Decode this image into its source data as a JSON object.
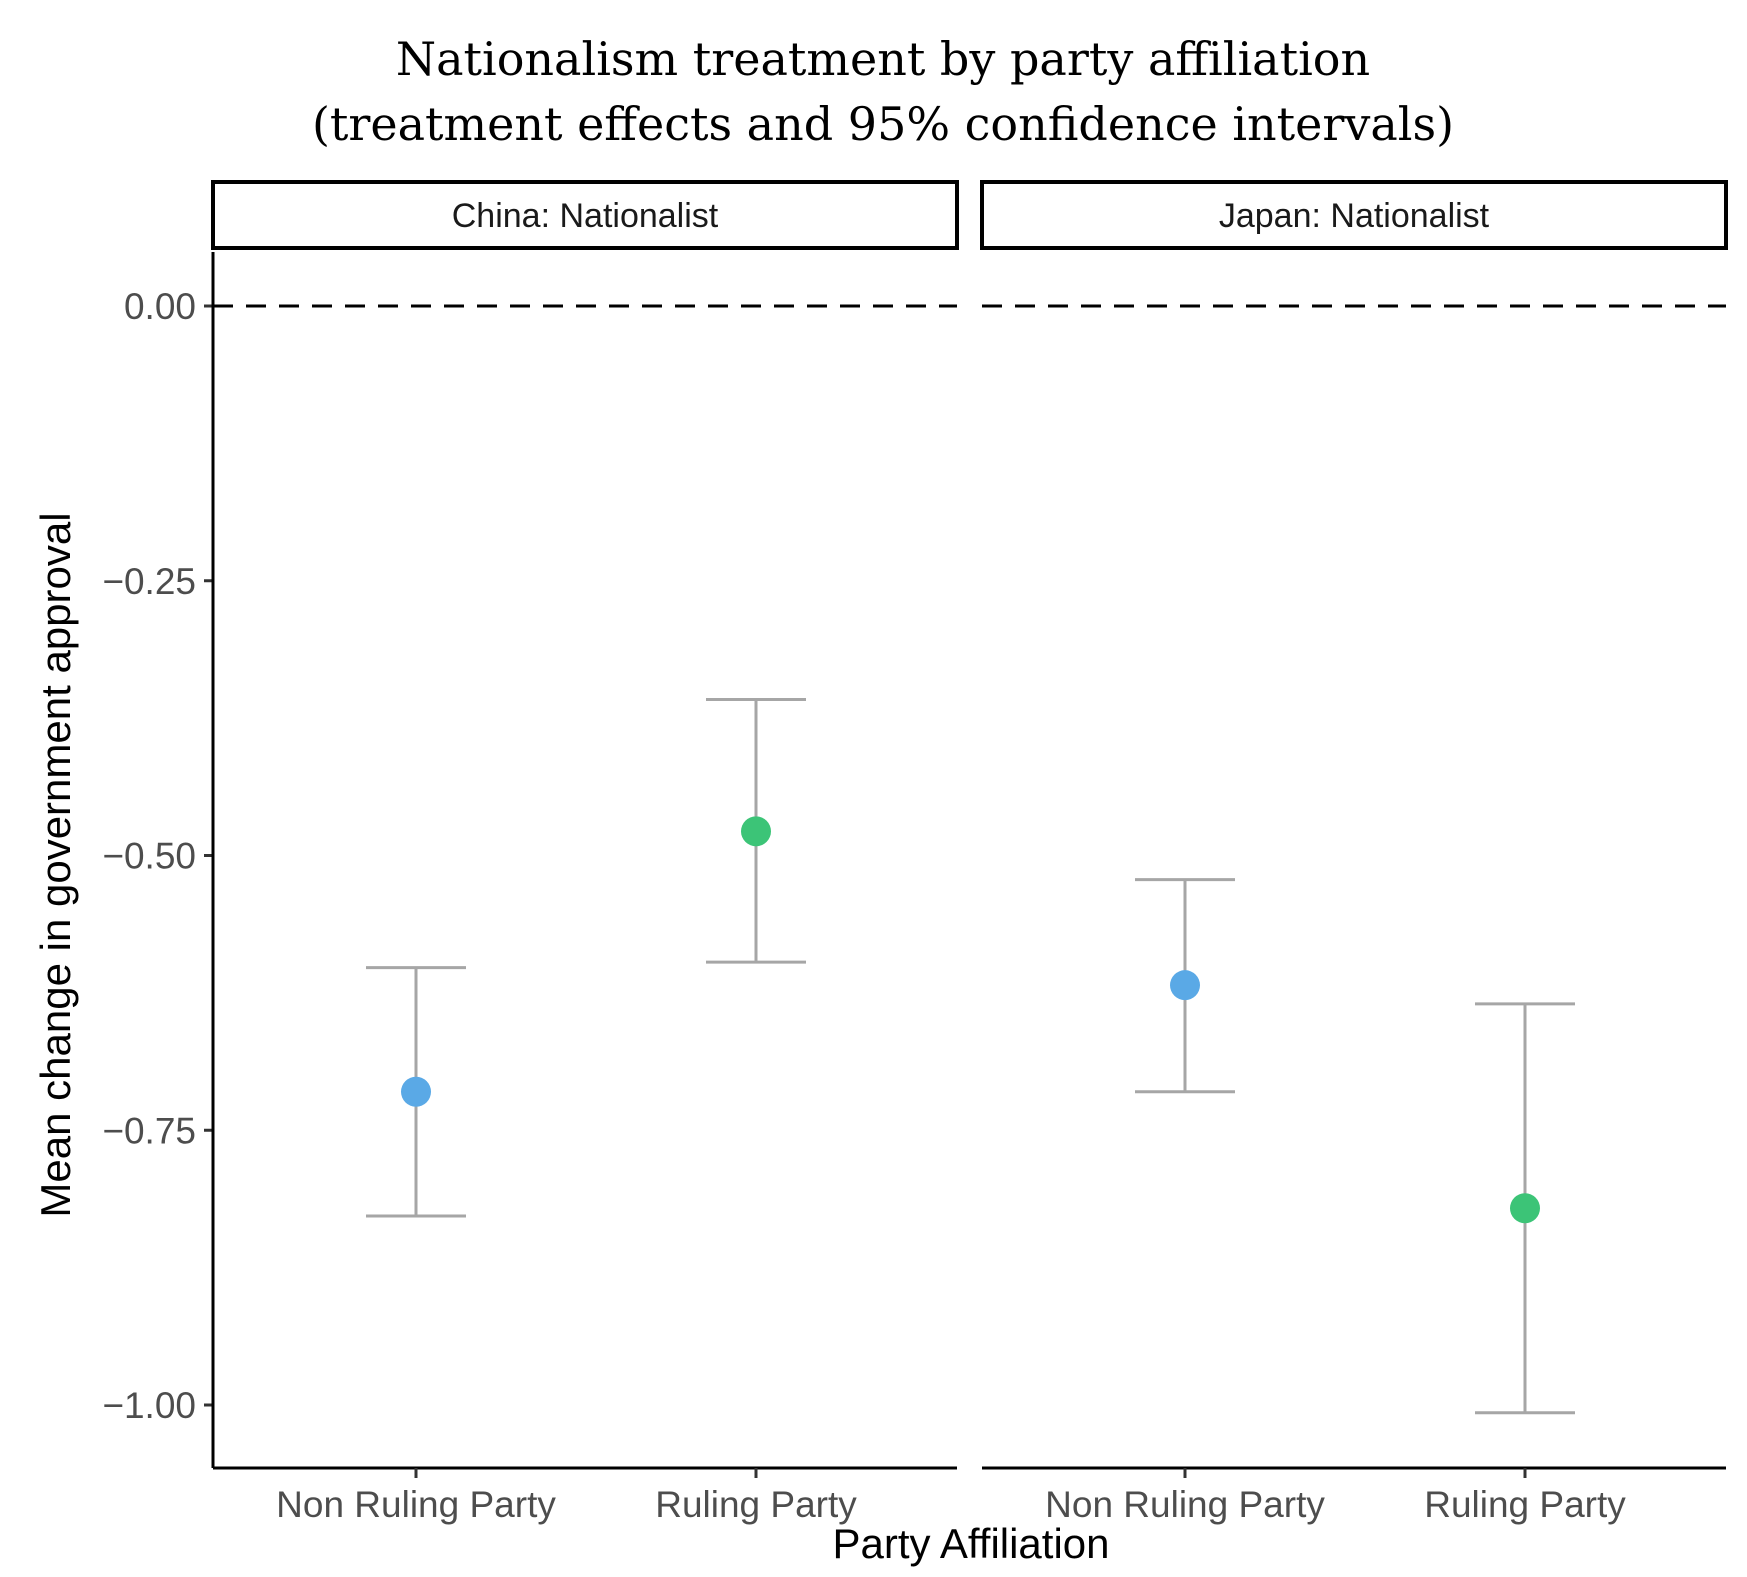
{
  "chart_data": {
    "type": "scatter",
    "title": "Nationalism treatment by party affiliation",
    "subtitle": "(treatment effects and 95% confidence intervals)",
    "xlabel": "Party Affiliation",
    "ylabel": "Mean change in government approval",
    "ylim": [
      -1.06,
      0.05
    ],
    "yticks": [
      0.0,
      -0.25,
      -0.5,
      -0.75,
      -1.0
    ],
    "ytick_labels": [
      "0.00",
      "−0.25",
      "−0.50",
      "−0.75",
      "−1.00"
    ],
    "reference_line": {
      "y": 0.0,
      "style": "dashed"
    },
    "grid": false,
    "categories": [
      "Non Ruling Party",
      "Ruling Party"
    ],
    "panels": [
      {
        "label": "China: Nationalist",
        "points": [
          {
            "category": "Non Ruling Party",
            "estimate": -0.715,
            "ci_low": -0.828,
            "ci_high": -0.602,
            "color": "#5aa9e6"
          },
          {
            "category": "Ruling Party",
            "estimate": -0.478,
            "ci_low": -0.597,
            "ci_high": -0.358,
            "color": "#3cc477"
          }
        ]
      },
      {
        "label": "Japan: Nationalist",
        "points": [
          {
            "category": "Non Ruling Party",
            "estimate": -0.618,
            "ci_low": -0.715,
            "ci_high": -0.522,
            "color": "#5aa9e6"
          },
          {
            "category": "Ruling Party",
            "estimate": -0.821,
            "ci_low": -1.007,
            "ci_high": -0.635,
            "color": "#3cc477"
          }
        ]
      }
    ],
    "errorbar_color": "#a6a6a6",
    "axis_color": "#000000"
  }
}
